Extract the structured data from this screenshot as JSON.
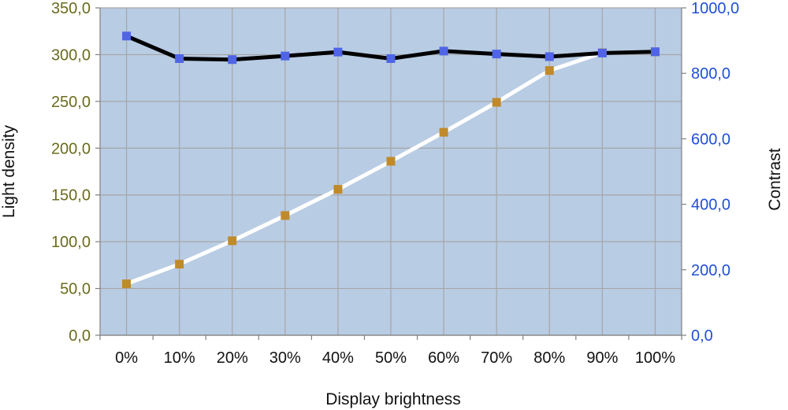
{
  "chart_data": {
    "type": "line",
    "title": "",
    "xlabel": "Display brightness",
    "ylabel_left": "Light density",
    "ylabel_right": "Contrast",
    "categories": [
      "0%",
      "10%",
      "20%",
      "30%",
      "40%",
      "50%",
      "60%",
      "70%",
      "80%",
      "90%",
      "100%"
    ],
    "y_left": {
      "range": [
        0,
        350
      ],
      "ticks": [
        "0,0",
        "50,0",
        "100,0",
        "150,0",
        "200,0",
        "250,0",
        "300,0",
        "350,0"
      ],
      "tick_values": [
        0,
        50,
        100,
        150,
        200,
        250,
        300,
        350
      ]
    },
    "y_right": {
      "range": [
        0,
        1000
      ],
      "ticks": [
        "0,0",
        "200,0",
        "400,0",
        "600,0",
        "800,0",
        "1000,0"
      ],
      "tick_values": [
        0,
        200,
        400,
        600,
        800,
        1000
      ]
    },
    "series": [
      {
        "axis": "left",
        "line_color": "#ffffff",
        "marker_color": "#c08a2b",
        "values": [
          55,
          76,
          101,
          128,
          156,
          186,
          217,
          249,
          283,
          302,
          303
        ]
      },
      {
        "axis": "right",
        "line_color": "#000000",
        "marker_color": "#4f64e6",
        "values": [
          914,
          845,
          842,
          853,
          865,
          845,
          868,
          859,
          851,
          862,
          866
        ]
      }
    ],
    "grid": true,
    "legend": "none",
    "plot_background": "#b8cce4",
    "grid_color": "#a6a6a6",
    "left_tick_color": "#6b6b1f",
    "right_tick_color": "#1f4fd6"
  }
}
